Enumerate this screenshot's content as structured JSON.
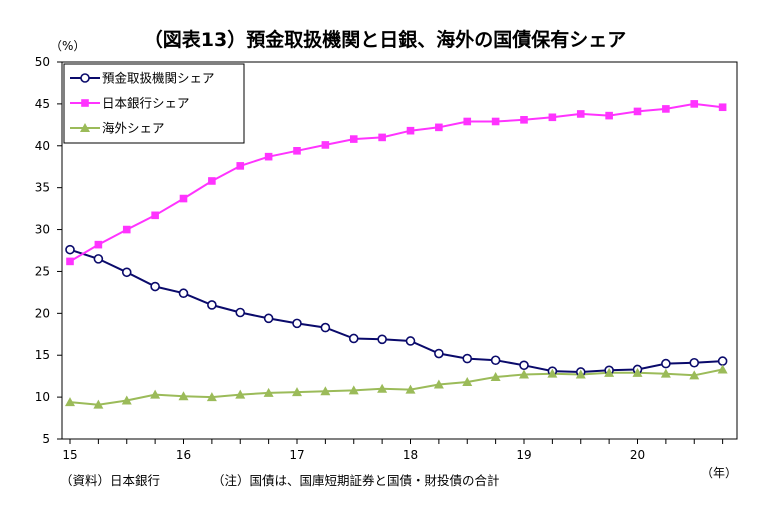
{
  "chart_data": {
    "type": "line",
    "title": "（図表13）預金取扱機関と日銀、海外の国債保有シェア",
    "ylabel": "（%）",
    "xlabel": "（年）",
    "ylim": [
      5,
      50
    ],
    "yticks": [
      5,
      10,
      15,
      20,
      25,
      30,
      35,
      40,
      45,
      50
    ],
    "xlim": [
      15,
      21
    ],
    "xticks": [
      {
        "x": 15,
        "label": "15"
      },
      {
        "x": 16,
        "label": "16"
      },
      {
        "x": 17,
        "label": "17"
      },
      {
        "x": 18,
        "label": "18"
      },
      {
        "x": 19,
        "label": "19"
      },
      {
        "x": 20,
        "label": "20"
      }
    ],
    "grid": false,
    "legend_position": "top-left",
    "x": [
      15.0,
      15.25,
      15.5,
      15.75,
      16.0,
      16.25,
      16.5,
      16.75,
      17.0,
      17.25,
      17.5,
      17.75,
      18.0,
      18.25,
      18.5,
      18.75,
      19.0,
      19.25,
      19.5,
      19.75,
      20.0,
      20.25,
      20.5,
      20.75
    ],
    "series": [
      {
        "name": "預金取扱機関シェア",
        "color": "#0a0a6b",
        "marker": "circle",
        "values": [
          27.6,
          26.5,
          24.9,
          23.2,
          22.4,
          21.0,
          20.1,
          19.4,
          18.8,
          18.3,
          17.0,
          16.9,
          16.7,
          15.2,
          14.6,
          14.4,
          13.8,
          13.1,
          13.0,
          13.2,
          13.3,
          14.0,
          14.1,
          14.3
        ]
      },
      {
        "name": "日本銀行シェア",
        "color": "#ff33ff",
        "marker": "square",
        "values": [
          26.2,
          28.2,
          30.0,
          31.7,
          33.7,
          35.8,
          37.6,
          38.7,
          39.4,
          40.1,
          40.8,
          41.0,
          41.8,
          42.2,
          42.9,
          42.9,
          43.1,
          43.4,
          43.8,
          43.6,
          44.1,
          44.4,
          45.0,
          44.6
        ]
      },
      {
        "name": "海外シェア",
        "color": "#9bbb59",
        "marker": "triangle",
        "values": [
          9.4,
          9.1,
          9.6,
          10.3,
          10.1,
          10.0,
          10.3,
          10.5,
          10.6,
          10.7,
          10.8,
          11.0,
          10.9,
          11.5,
          11.8,
          12.4,
          12.7,
          12.8,
          12.7,
          12.9,
          12.9,
          12.8,
          12.6,
          13.3
        ]
      }
    ]
  },
  "notes": {
    "source": "（資料）日本銀行",
    "note": "（注）国債は、国庫短期証券と国債・財投債の合計"
  }
}
